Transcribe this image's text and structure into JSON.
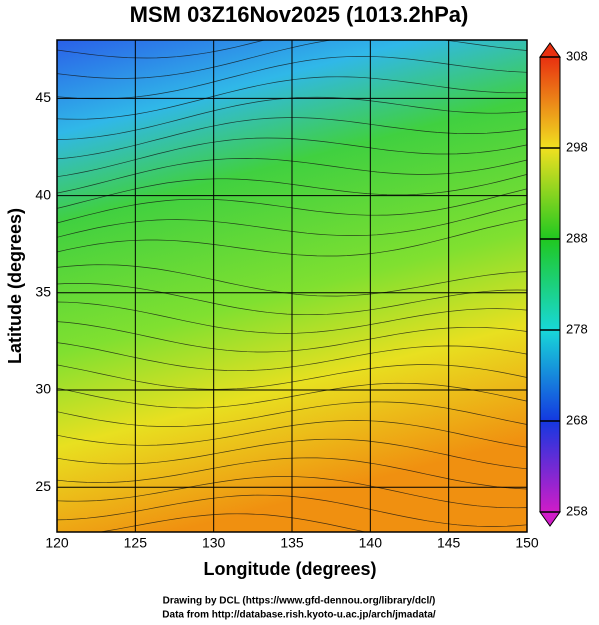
{
  "chart_data": {
    "type": "map",
    "title": "MSM 03Z16Nov2025 (1013.2hPa)",
    "xlabel": "Longitude (degrees)",
    "ylabel": "Latitude  (degrees)",
    "xlim": [
      120,
      150
    ],
    "ylim": [
      22.7,
      48
    ],
    "xticks": [
      120,
      125,
      130,
      135,
      140,
      145,
      150
    ],
    "yticks": [
      25,
      30,
      35,
      40,
      45
    ],
    "grid": true,
    "colorbar": {
      "lim": [
        258,
        308
      ],
      "ticks": [
        258,
        268,
        278,
        288,
        298,
        308
      ],
      "colors": [
        "#d01cc8",
        "#1438e0",
        "#18d8d8",
        "#20c820",
        "#f0e020",
        "#e83010"
      ]
    },
    "footer": [
      "Drawing by DCL (https://www.gfd-dennou.org/library/dcl/)",
      "Data from http://database.rish.kyoto-u.ac.jp/arch/jmadata/"
    ]
  }
}
